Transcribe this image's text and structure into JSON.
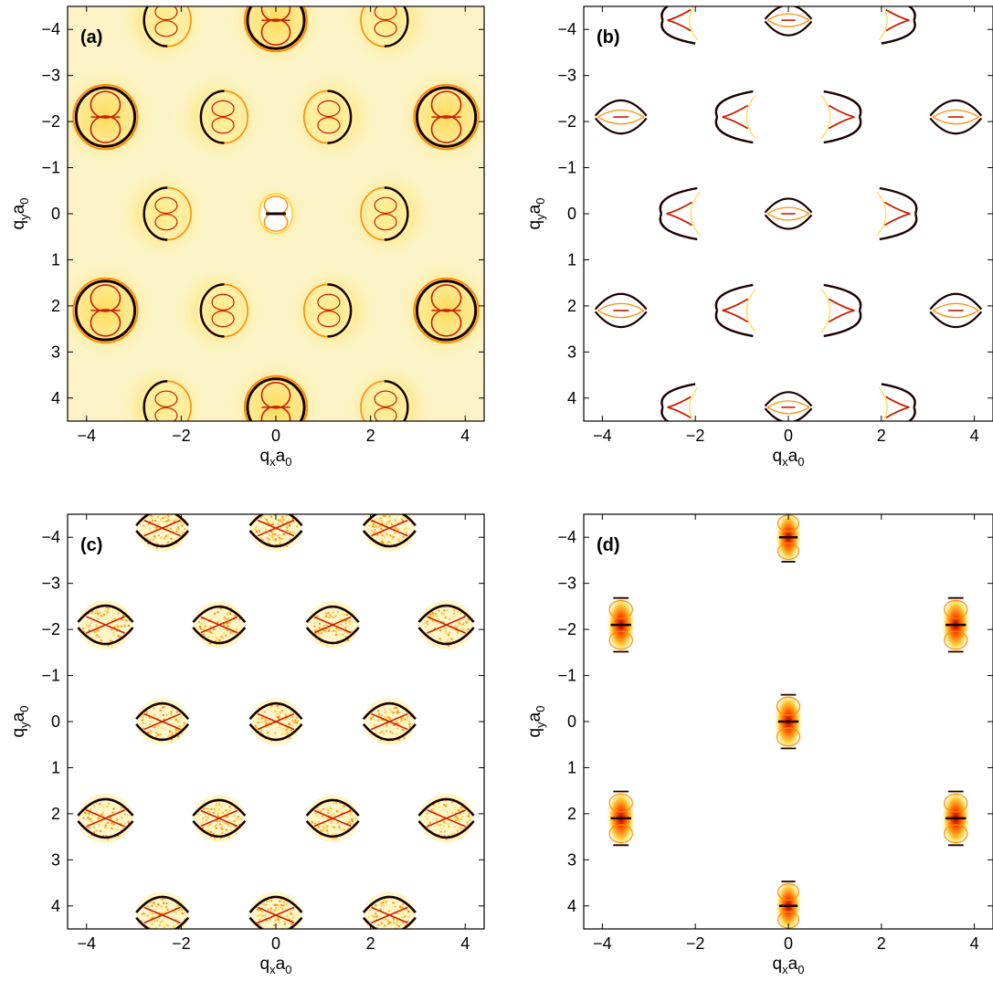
{
  "chart_data": [
    {
      "type": "heatmap",
      "panel_label": "(a)",
      "xlabel": {
        "base1": "q",
        "sub1": "x",
        "base2": "a",
        "sub2": "0"
      },
      "ylabel": {
        "base1": "q",
        "sub1": "y",
        "base2": "a",
        "sub2": "0"
      },
      "xlim": [
        -4.4,
        4.4
      ],
      "ylim": [
        -4.5,
        4.5
      ],
      "y_reversed": true,
      "xticks": [
        -4,
        -2,
        0,
        2,
        4
      ],
      "xtick_labels": [
        "−4",
        "−2",
        "0",
        "2",
        "4"
      ],
      "yticks": [
        -4,
        -3,
        -2,
        -1,
        0,
        1,
        2,
        3,
        4
      ],
      "ytick_labels": [
        "−4",
        "−3",
        "−2",
        "−1",
        "0",
        "1",
        "2",
        "3",
        "4"
      ],
      "colormap": "hot (white → yellow → red → black)",
      "background": "#fbf3c6",
      "features": [
        {
          "shape": "ring",
          "x": -3.6,
          "y": -2.1,
          "r": 0.62,
          "intensity": 1.0
        },
        {
          "shape": "ring",
          "x": 3.6,
          "y": -2.1,
          "r": 0.62,
          "intensity": 1.0
        },
        {
          "shape": "ring",
          "x": -3.6,
          "y": 2.1,
          "r": 0.62,
          "intensity": 1.0
        },
        {
          "shape": "ring",
          "x": 3.6,
          "y": 2.1,
          "r": 0.62,
          "intensity": 1.0
        },
        {
          "shape": "ring",
          "x": 0,
          "y": -4.2,
          "r": 0.6,
          "intensity": 1.0
        },
        {
          "shape": "ring",
          "x": 0,
          "y": 4.2,
          "r": 0.6,
          "intensity": 1.0
        },
        {
          "shape": "crescent",
          "x": -2.4,
          "y": 0,
          "r": 0.55,
          "intensity": 0.8
        },
        {
          "shape": "crescent",
          "x": 2.4,
          "y": 0,
          "r": 0.55,
          "intensity": 0.8
        },
        {
          "shape": "crescent",
          "x": -1.2,
          "y": -2.1,
          "r": 0.55,
          "intensity": 0.8
        },
        {
          "shape": "crescent",
          "x": 1.2,
          "y": -2.1,
          "r": 0.55,
          "intensity": 0.8
        },
        {
          "shape": "crescent",
          "x": -1.2,
          "y": 2.1,
          "r": 0.55,
          "intensity": 0.8
        },
        {
          "shape": "crescent",
          "x": 1.2,
          "y": 2.1,
          "r": 0.55,
          "intensity": 0.8
        },
        {
          "shape": "crescent",
          "x": -2.4,
          "y": -4.2,
          "r": 0.55,
          "intensity": 0.7
        },
        {
          "shape": "crescent",
          "x": 2.4,
          "y": -4.2,
          "r": 0.55,
          "intensity": 0.7
        },
        {
          "shape": "crescent",
          "x": -2.4,
          "y": 4.2,
          "r": 0.55,
          "intensity": 0.7
        },
        {
          "shape": "crescent",
          "x": 2.4,
          "y": 4.2,
          "r": 0.55,
          "intensity": 0.7
        },
        {
          "shape": "bowtie",
          "x": 0,
          "y": 0,
          "r": 0.35,
          "intensity": 0.8
        }
      ]
    },
    {
      "type": "heatmap",
      "panel_label": "(b)",
      "xlabel": {
        "base1": "q",
        "sub1": "x",
        "base2": "a",
        "sub2": "0"
      },
      "ylabel": {
        "base1": "q",
        "sub1": "y",
        "base2": "a",
        "sub2": "0"
      },
      "xlim": [
        -4.4,
        4.4
      ],
      "ylim": [
        -4.5,
        4.5
      ],
      "y_reversed": true,
      "xticks": [
        -4,
        -2,
        0,
        2,
        4
      ],
      "xtick_labels": [
        "−4",
        "−2",
        "0",
        "2",
        "4"
      ],
      "yticks": [
        -4,
        -3,
        -2,
        -1,
        0,
        1,
        2,
        3,
        4
      ],
      "ytick_labels": [
        "−4",
        "−3",
        "−2",
        "−1",
        "0",
        "1",
        "2",
        "3",
        "4"
      ],
      "colormap": "hot (white → yellow → red → black)",
      "background": "#ffffff",
      "features": [
        {
          "shape": "lens",
          "x": -3.6,
          "y": -2.1,
          "r": 0.55,
          "intensity": 0.9
        },
        {
          "shape": "lens",
          "x": 3.6,
          "y": -2.1,
          "r": 0.55,
          "intensity": 0.9
        },
        {
          "shape": "lens",
          "x": -3.6,
          "y": 2.1,
          "r": 0.55,
          "intensity": 0.9
        },
        {
          "shape": "lens",
          "x": 3.6,
          "y": 2.1,
          "r": 0.55,
          "intensity": 0.9
        },
        {
          "shape": "lens",
          "x": 0,
          "y": -4.2,
          "r": 0.5,
          "intensity": 0.9
        },
        {
          "shape": "lens",
          "x": 0,
          "y": 0,
          "r": 0.5,
          "intensity": 0.6
        },
        {
          "shape": "lens",
          "x": 0,
          "y": 4.2,
          "r": 0.5,
          "intensity": 0.9
        },
        {
          "shape": "arrow",
          "x": -2.4,
          "y": 0,
          "r": 0.55,
          "intensity": 0.8
        },
        {
          "shape": "arrow",
          "x": 2.4,
          "y": 0,
          "r": 0.55,
          "intensity": 0.8
        },
        {
          "shape": "arrow",
          "x": -1.2,
          "y": -2.1,
          "r": 0.55,
          "intensity": 0.9
        },
        {
          "shape": "arrow",
          "x": 1.2,
          "y": -2.1,
          "r": 0.55,
          "intensity": 0.9
        },
        {
          "shape": "arrow",
          "x": -1.2,
          "y": 2.1,
          "r": 0.55,
          "intensity": 0.9
        },
        {
          "shape": "arrow",
          "x": 1.2,
          "y": 2.1,
          "r": 0.55,
          "intensity": 0.9
        },
        {
          "shape": "arrow",
          "x": -2.4,
          "y": -4.2,
          "r": 0.5,
          "intensity": 0.9
        },
        {
          "shape": "arrow",
          "x": 2.4,
          "y": -4.2,
          "r": 0.5,
          "intensity": 0.9
        },
        {
          "shape": "arrow",
          "x": -2.4,
          "y": 4.2,
          "r": 0.5,
          "intensity": 0.9
        },
        {
          "shape": "arrow",
          "x": 2.4,
          "y": 4.2,
          "r": 0.5,
          "intensity": 0.9
        }
      ]
    },
    {
      "type": "heatmap",
      "panel_label": "(c)",
      "xlabel": {
        "base1": "q",
        "sub1": "x",
        "base2": "a",
        "sub2": "0"
      },
      "ylabel": {
        "base1": "q",
        "sub1": "y",
        "base2": "a",
        "sub2": "0"
      },
      "xlim": [
        -4.4,
        4.4
      ],
      "ylim": [
        -4.5,
        4.5
      ],
      "y_reversed": true,
      "xticks": [
        -4,
        -2,
        0,
        2,
        4
      ],
      "xtick_labels": [
        "−4",
        "−2",
        "0",
        "2",
        "4"
      ],
      "yticks": [
        -4,
        -3,
        -2,
        -1,
        0,
        1,
        2,
        3,
        4
      ],
      "ytick_labels": [
        "−4",
        "−3",
        "−2",
        "−1",
        "0",
        "1",
        "2",
        "3",
        "4"
      ],
      "colormap": "hot (white → yellow → red → black)",
      "background": "#ffffff",
      "features": [
        {
          "shape": "noisy-lens",
          "x": -3.6,
          "y": -2.1,
          "r": 0.58,
          "intensity": 1.0
        },
        {
          "shape": "noisy-lens",
          "x": 3.6,
          "y": -2.1,
          "r": 0.58,
          "intensity": 1.0
        },
        {
          "shape": "noisy-lens",
          "x": -3.6,
          "y": 2.1,
          "r": 0.58,
          "intensity": 1.0
        },
        {
          "shape": "noisy-lens",
          "x": 3.6,
          "y": 2.1,
          "r": 0.58,
          "intensity": 1.0
        },
        {
          "shape": "noisy-lens",
          "x": 0,
          "y": -4.2,
          "r": 0.55,
          "intensity": 1.0
        },
        {
          "shape": "noisy-lens",
          "x": 0,
          "y": 0,
          "r": 0.55,
          "intensity": 1.0
        },
        {
          "shape": "noisy-lens",
          "x": 0,
          "y": 4.2,
          "r": 0.55,
          "intensity": 1.0
        },
        {
          "shape": "noisy-lens",
          "x": -2.4,
          "y": 0,
          "r": 0.55,
          "intensity": 0.8
        },
        {
          "shape": "noisy-lens",
          "x": 2.4,
          "y": 0,
          "r": 0.55,
          "intensity": 0.8
        },
        {
          "shape": "noisy-lens",
          "x": -1.2,
          "y": -2.1,
          "r": 0.55,
          "intensity": 0.8
        },
        {
          "shape": "noisy-lens",
          "x": 1.2,
          "y": -2.1,
          "r": 0.55,
          "intensity": 0.8
        },
        {
          "shape": "noisy-lens",
          "x": -1.2,
          "y": 2.1,
          "r": 0.55,
          "intensity": 0.8
        },
        {
          "shape": "noisy-lens",
          "x": 1.2,
          "y": 2.1,
          "r": 0.55,
          "intensity": 0.8
        },
        {
          "shape": "noisy-lens",
          "x": -2.4,
          "y": -4.2,
          "r": 0.55,
          "intensity": 0.9
        },
        {
          "shape": "noisy-lens",
          "x": 2.4,
          "y": -4.2,
          "r": 0.55,
          "intensity": 0.9
        },
        {
          "shape": "noisy-lens",
          "x": -2.4,
          "y": 4.2,
          "r": 0.55,
          "intensity": 0.9
        },
        {
          "shape": "noisy-lens",
          "x": 2.4,
          "y": 4.2,
          "r": 0.55,
          "intensity": 0.9
        }
      ]
    },
    {
      "type": "heatmap",
      "panel_label": "(d)",
      "xlabel": {
        "base1": "q",
        "sub1": "x",
        "base2": "a",
        "sub2": "0"
      },
      "ylabel": {
        "base1": "q",
        "sub1": "y",
        "base2": "a",
        "sub2": "0"
      },
      "xlim": [
        -4.4,
        4.4
      ],
      "ylim": [
        -4.5,
        4.5
      ],
      "y_reversed": true,
      "xticks": [
        -4,
        -2,
        0,
        2,
        4
      ],
      "xtick_labels": [
        "−4",
        "−2",
        "0",
        "2",
        "4"
      ],
      "yticks": [
        -4,
        -3,
        -2,
        -1,
        0,
        1,
        2,
        3,
        4
      ],
      "ytick_labels": [
        "−4",
        "−3",
        "−2",
        "−1",
        "0",
        "1",
        "2",
        "3",
        "4"
      ],
      "colormap": "hot (white → yellow → red → black)",
      "background": "#ffffff",
      "features": [
        {
          "shape": "pill",
          "x": -3.6,
          "y": -2.1,
          "r": 0.55,
          "intensity": 0.9
        },
        {
          "shape": "pill",
          "x": 3.6,
          "y": -2.1,
          "r": 0.55,
          "intensity": 0.9
        },
        {
          "shape": "pill",
          "x": -3.6,
          "y": 2.1,
          "r": 0.55,
          "intensity": 0.9
        },
        {
          "shape": "pill",
          "x": 3.6,
          "y": 2.1,
          "r": 0.55,
          "intensity": 0.9
        },
        {
          "shape": "pill",
          "x": 0,
          "y": -4.0,
          "r": 0.5,
          "intensity": 0.9
        },
        {
          "shape": "pill",
          "x": 0,
          "y": 0,
          "r": 0.55,
          "intensity": 1.0
        },
        {
          "shape": "pill",
          "x": 0,
          "y": 4.0,
          "r": 0.5,
          "intensity": 0.9
        }
      ]
    }
  ]
}
